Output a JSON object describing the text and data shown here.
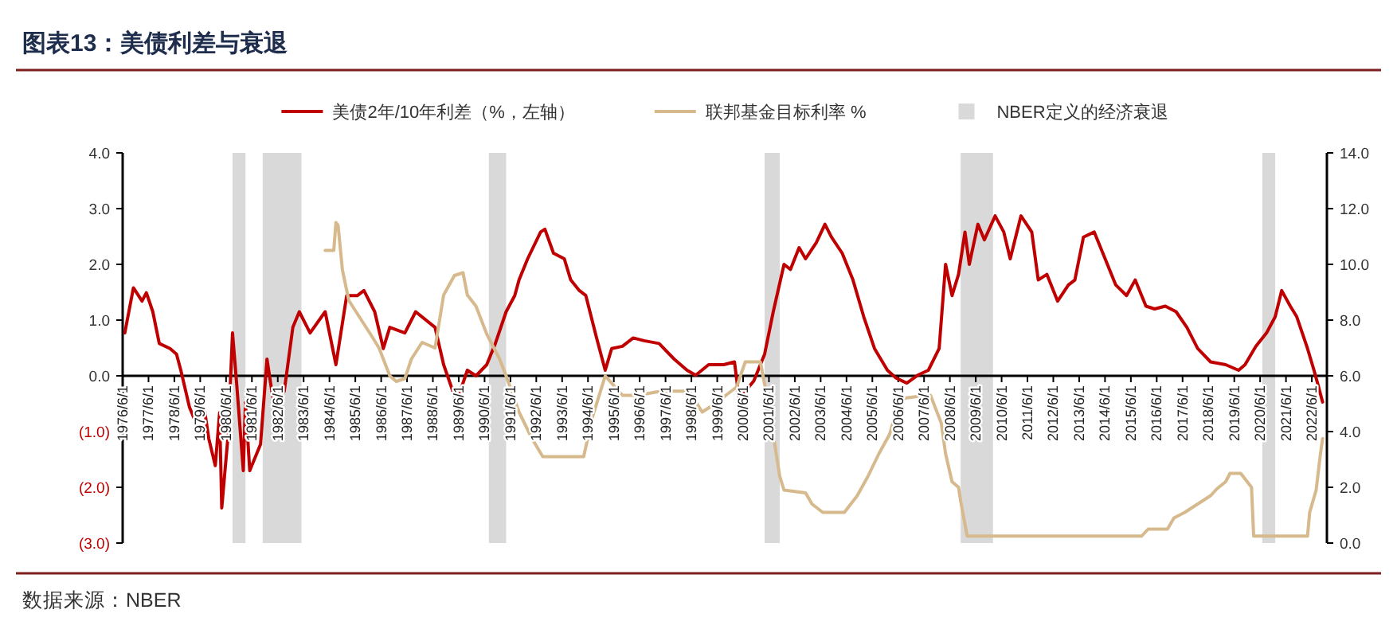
{
  "chart_data": {
    "type": "line",
    "title": "图表13：美债利差与衰退",
    "annotations": [
      "数据来源：NBER"
    ],
    "legend": "top",
    "xlim": [
      "1976-06-01",
      "2023-01-01"
    ],
    "ylim": [
      -3,
      4
    ],
    "y2lim": [
      0,
      14
    ],
    "yticks": [
      {
        "value": 4,
        "label": "4.0"
      },
      {
        "value": 3,
        "label": "3.0"
      },
      {
        "value": 2,
        "label": "2.0"
      },
      {
        "value": 1,
        "label": "1.0"
      },
      {
        "value": 0,
        "label": "0.0"
      },
      {
        "value": -1,
        "label": "(1.0)"
      },
      {
        "value": -2,
        "label": "(2.0)"
      },
      {
        "value": -3,
        "label": "(3.0)"
      }
    ],
    "y2ticks": [
      {
        "value": 0,
        "label": "0.0"
      },
      {
        "value": 2,
        "label": "2.0"
      },
      {
        "value": 4,
        "label": "4.0"
      },
      {
        "value": 6,
        "label": "6.0"
      },
      {
        "value": 8,
        "label": "8.0"
      },
      {
        "value": 10,
        "label": "10.0"
      },
      {
        "value": 12,
        "label": "12.0"
      },
      {
        "value": 14,
        "label": "14.0"
      }
    ],
    "xticks": [
      {
        "value": "1976-06-01",
        "label": "1976/6/1"
      },
      {
        "value": "1977-06-01",
        "label": "1977/6/1"
      },
      {
        "value": "1978-06-01",
        "label": "1978/6/1"
      },
      {
        "value": "1979-06-01",
        "label": "1979/6/1"
      },
      {
        "value": "1980-06-01",
        "label": "1980/6/1"
      },
      {
        "value": "1981-06-01",
        "label": "1981/6/1"
      },
      {
        "value": "1982-06-01",
        "label": "1982/6/1"
      },
      {
        "value": "1983-06-01",
        "label": "1983/6/1"
      },
      {
        "value": "1984-06-01",
        "label": "1984/6/1"
      },
      {
        "value": "1985-06-01",
        "label": "1985/6/1"
      },
      {
        "value": "1986-06-01",
        "label": "1986/6/1"
      },
      {
        "value": "1987-06-01",
        "label": "1987/6/1"
      },
      {
        "value": "1988-06-01",
        "label": "1988/6/1"
      },
      {
        "value": "1989-06-01",
        "label": "1989/6/1"
      },
      {
        "value": "1990-06-01",
        "label": "1990/6/1"
      },
      {
        "value": "1991-06-01",
        "label": "1991/6/1"
      },
      {
        "value": "1992-06-01",
        "label": "1992/6/1"
      },
      {
        "value": "1993-06-01",
        "label": "1993/6/1"
      },
      {
        "value": "1994-06-01",
        "label": "1994/6/1"
      },
      {
        "value": "1995-06-01",
        "label": "1995/6/1"
      },
      {
        "value": "1996-06-01",
        "label": "1996/6/1"
      },
      {
        "value": "1997-06-01",
        "label": "1997/6/1"
      },
      {
        "value": "1998-06-01",
        "label": "1998/6/1"
      },
      {
        "value": "1999-06-01",
        "label": "1999/6/1"
      },
      {
        "value": "2000-06-01",
        "label": "2000/6/1"
      },
      {
        "value": "2001-06-01",
        "label": "2001/6/1"
      },
      {
        "value": "2002-06-01",
        "label": "2002/6/1"
      },
      {
        "value": "2003-06-01",
        "label": "2003/6/1"
      },
      {
        "value": "2004-06-01",
        "label": "2004/6/1"
      },
      {
        "value": "2005-06-01",
        "label": "2005/6/1"
      },
      {
        "value": "2006-06-01",
        "label": "2006/6/1"
      },
      {
        "value": "2007-06-01",
        "label": "2007/6/1"
      },
      {
        "value": "2008-06-01",
        "label": "2008/6/1"
      },
      {
        "value": "2009-06-01",
        "label": "2009/6/1"
      },
      {
        "value": "2010-06-01",
        "label": "2010/6/1"
      },
      {
        "value": "2011-06-01",
        "label": "2011/6/1"
      },
      {
        "value": "2012-06-01",
        "label": "2012/6/1"
      },
      {
        "value": "2013-06-01",
        "label": "2013/6/1"
      },
      {
        "value": "2014-06-01",
        "label": "2014/6/1"
      },
      {
        "value": "2015-06-01",
        "label": "2015/6/1"
      },
      {
        "value": "2016-06-01",
        "label": "2016/6/1"
      },
      {
        "value": "2017-06-01",
        "label": "2017/6/1"
      },
      {
        "value": "2018-06-01",
        "label": "2018/6/1"
      },
      {
        "value": "2019-06-01",
        "label": "2019/6/1"
      },
      {
        "value": "2020-06-01",
        "label": "2020/6/1"
      },
      {
        "value": "2021-06-01",
        "label": "2021/6/1"
      },
      {
        "value": "2022-06-01",
        "label": "2022/6/1"
      }
    ],
    "bands": [
      {
        "axis": "x",
        "from": "1980-09",
        "to": "1981-03",
        "label": "NBER定义的经济衰退",
        "color": "#d9d9d9"
      },
      {
        "axis": "x",
        "from": "1981-11",
        "to": "1983-05",
        "color": "#d9d9d9"
      },
      {
        "axis": "x",
        "from": "1990-08",
        "to": "1991-04",
        "color": "#d9d9d9"
      },
      {
        "axis": "x",
        "from": "2001-04",
        "to": "2001-11",
        "color": "#d9d9d9"
      },
      {
        "axis": "x",
        "from": "2008-11",
        "to": "2010-02",
        "color": "#d9d9d9"
      },
      {
        "axis": "x",
        "from": "2020-07",
        "to": "2021-01",
        "color": "#d9d9d9"
      }
    ],
    "series": [
      {
        "name": "美债2年/10年利差（%，左轴）",
        "color": "#c00000",
        "x": [
          "1976-07",
          "1976-11",
          "1977-03",
          "1977-05",
          "1977-08",
          "1977-11",
          "1978-04",
          "1978-07",
          "1978-09",
          "1979-01",
          "1979-03",
          "1979-08",
          "1979-10",
          "1980-01",
          "1980-03",
          "1980-04",
          "1980-07",
          "1980-09",
          "1980-11",
          "1981-02",
          "1981-03",
          "1981-05",
          "1981-10",
          "1982-01",
          "1982-04",
          "1982-09",
          "1983-01",
          "1983-04",
          "1983-09",
          "1984-04",
          "1984-09",
          "1985-02",
          "1985-07",
          "1985-10",
          "1986-03",
          "1986-07",
          "1986-10",
          "1987-05",
          "1987-10",
          "1988-07",
          "1988-11",
          "1989-05",
          "1989-10",
          "1990-02",
          "1990-07",
          "1990-11",
          "1991-04",
          "1991-08",
          "1991-10",
          "1992-02",
          "1992-08",
          "1992-10",
          "1993-02",
          "1993-07",
          "1993-10",
          "1994-02",
          "1994-05",
          "1994-10",
          "1995-02",
          "1995-05",
          "1995-10",
          "1996-03",
          "1996-08",
          "1997-03",
          "1997-10",
          "1998-04",
          "1998-08",
          "1999-02",
          "1999-09",
          "2000-02",
          "2000-04",
          "2000-07",
          "2000-11",
          "2001-04",
          "2001-08",
          "2002-01",
          "2002-04",
          "2002-08",
          "2002-11",
          "2003-04",
          "2003-08",
          "2003-11",
          "2004-04",
          "2004-09",
          "2005-02",
          "2005-07",
          "2006-01",
          "2006-05",
          "2006-10",
          "2007-03",
          "2007-08",
          "2008-01",
          "2008-04",
          "2008-07",
          "2008-10",
          "2009-01",
          "2009-03",
          "2009-07",
          "2009-10",
          "2010-03",
          "2010-07",
          "2010-10",
          "2011-03",
          "2011-08",
          "2011-11",
          "2012-03",
          "2012-08",
          "2013-01",
          "2013-04",
          "2013-08",
          "2014-01",
          "2014-05",
          "2014-11",
          "2015-04",
          "2015-08",
          "2016-01",
          "2016-05",
          "2016-10",
          "2017-03",
          "2017-08",
          "2018-01",
          "2018-07",
          "2019-02",
          "2019-08",
          "2019-11",
          "2020-04",
          "2020-09",
          "2021-01",
          "2021-04",
          "2021-08",
          "2021-11",
          "2022-04",
          "2022-07",
          "2022-09",
          "2022-11"
        ],
        "values": [
          0.77,
          1.58,
          1.34,
          1.49,
          1.15,
          0.58,
          0.49,
          0.39,
          0.1,
          -0.56,
          -0.75,
          -0.61,
          -1.13,
          -1.61,
          -0.66,
          -2.37,
          -1.04,
          0.77,
          -0.18,
          -1.7,
          -0.47,
          -1.7,
          -1.23,
          0.3,
          -0.47,
          -0.28,
          0.87,
          1.15,
          0.77,
          1.15,
          0.2,
          1.44,
          1.44,
          1.53,
          1.15,
          0.49,
          0.87,
          0.77,
          1.15,
          0.87,
          0.2,
          -0.47,
          0.1,
          0.0,
          0.2,
          0.58,
          1.15,
          1.44,
          1.72,
          2.1,
          2.58,
          2.63,
          2.2,
          2.1,
          1.72,
          1.53,
          1.44,
          0.68,
          0.1,
          0.49,
          0.53,
          0.68,
          0.63,
          0.58,
          0.3,
          0.1,
          0.01,
          0.2,
          0.2,
          0.25,
          -0.37,
          -0.28,
          -0.09,
          0.39,
          1.15,
          2.0,
          1.91,
          2.3,
          2.1,
          2.39,
          2.72,
          2.49,
          2.2,
          1.72,
          1.06,
          0.49,
          0.1,
          -0.04,
          -0.13,
          0.01,
          0.1,
          0.49,
          2.0,
          1.44,
          1.82,
          2.58,
          2.0,
          2.72,
          2.44,
          2.87,
          2.58,
          2.1,
          2.87,
          2.58,
          1.72,
          1.82,
          1.34,
          1.63,
          1.72,
          2.49,
          2.58,
          2.2,
          1.63,
          1.44,
          1.72,
          1.25,
          1.2,
          1.25,
          1.15,
          0.87,
          0.49,
          0.25,
          0.2,
          0.1,
          0.2,
          0.53,
          0.77,
          1.06,
          1.53,
          1.25,
          1.06,
          0.49,
          0.1,
          -0.18,
          -0.47
        ]
      },
      {
        "name": "联邦基金目标利率 %",
        "color": "#d6b98c",
        "axis": "y2",
        "x": [
          "1984-04",
          "1984-08",
          "1984-09",
          "1984-10",
          "1984-12",
          "1985-03",
          "1986-01",
          "1986-05",
          "1986-10",
          "1987-01",
          "1987-05",
          "1987-08",
          "1988-01",
          "1988-07",
          "1988-11",
          "1989-04",
          "1989-08",
          "1989-10",
          "1990-02",
          "1990-07",
          "1991-01",
          "1991-04",
          "1991-10",
          "1992-04",
          "1992-09",
          "1994-04",
          "1994-08",
          "1995-02",
          "1995-10",
          "1996-05",
          "1997-04",
          "1998-05",
          "1998-11",
          "1999-05",
          "1999-10",
          "2000-03",
          "2000-07",
          "2001-02",
          "2001-05",
          "2001-08",
          "2001-11",
          "2002-01",
          "2002-11",
          "2003-02",
          "2003-07",
          "2004-05",
          "2004-11",
          "2005-04",
          "2005-09",
          "2006-02",
          "2006-05",
          "2006-09",
          "2007-07",
          "2007-09",
          "2008-02",
          "2008-04",
          "2008-07",
          "2008-10",
          "2008-11",
          "2009-02",
          "2015-11",
          "2016-02",
          "2016-11",
          "2017-02",
          "2017-07",
          "2017-11",
          "2018-03",
          "2018-07",
          "2018-10",
          "2019-02",
          "2019-04",
          "2019-09",
          "2019-11",
          "2020-02",
          "2020-03",
          "2022-04",
          "2022-05",
          "2022-08",
          "2022-10",
          "2022-11"
        ],
        "values": [
          10.5,
          10.5,
          11.5,
          11.4,
          9.8,
          8.7,
          7.5,
          7.0,
          6.0,
          5.8,
          5.9,
          6.6,
          7.2,
          7.0,
          8.9,
          9.6,
          9.7,
          8.9,
          8.5,
          7.5,
          6.6,
          6.0,
          4.7,
          3.75,
          3.1,
          3.1,
          4.5,
          6.0,
          5.3,
          5.3,
          5.45,
          5.45,
          4.7,
          5.0,
          5.3,
          5.6,
          6.5,
          6.5,
          5.3,
          3.9,
          2.4,
          1.9,
          1.8,
          1.4,
          1.1,
          1.1,
          1.7,
          2.4,
          3.2,
          3.9,
          4.7,
          5.2,
          5.3,
          5.3,
          4.3,
          3.2,
          2.2,
          2.0,
          1.5,
          0.25,
          0.25,
          0.5,
          0.5,
          0.9,
          1.1,
          1.3,
          1.5,
          1.7,
          1.95,
          2.2,
          2.5,
          2.5,
          2.3,
          2.0,
          0.25,
          0.25,
          1.1,
          1.9,
          3.2,
          3.75
        ]
      }
    ]
  }
}
